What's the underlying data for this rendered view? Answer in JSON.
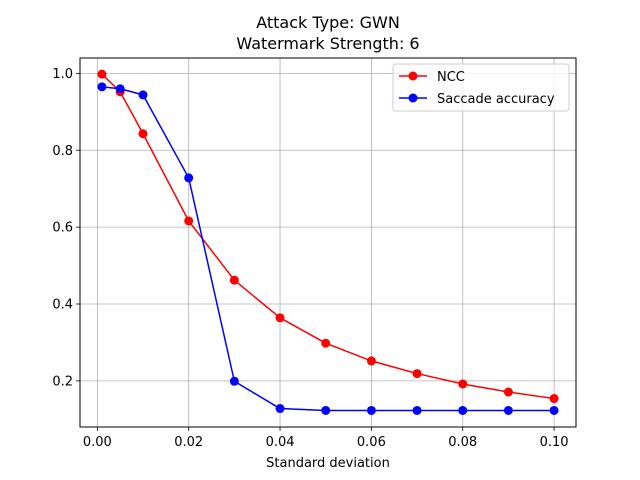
{
  "chart_data": {
    "type": "line",
    "title_line1": "Attack Type: GWN",
    "title_line2": "Watermark Strength: 6",
    "xlabel": "Standard deviation",
    "ylabel": "",
    "xlim": [
      -0.0038,
      0.1048
    ],
    "ylim": [
      0.08,
      1.04
    ],
    "xticks": [
      0.0,
      0.02,
      0.04,
      0.06,
      0.08,
      0.1
    ],
    "xtick_labels": [
      "0.00",
      "0.02",
      "0.04",
      "0.06",
      "0.08",
      "0.10"
    ],
    "yticks": [
      0.2,
      0.4,
      0.6,
      0.8,
      1.0
    ],
    "ytick_labels": [
      "0.2",
      "0.4",
      "0.6",
      "0.8",
      "1.0"
    ],
    "grid": true,
    "legend_position": "top-right",
    "x": [
      0.001,
      0.005,
      0.01,
      0.02,
      0.03,
      0.04,
      0.05,
      0.06,
      0.07,
      0.08,
      0.09,
      0.1
    ],
    "series": [
      {
        "name": "NCC",
        "color": "#ff0000",
        "values": [
          0.998,
          0.952,
          0.843,
          0.616,
          0.462,
          0.364,
          0.298,
          0.252,
          0.219,
          0.192,
          0.171,
          0.154
        ]
      },
      {
        "name": "Saccade accuracy",
        "color": "#0000ff",
        "values": [
          0.965,
          0.96,
          0.944,
          0.728,
          0.199,
          0.128,
          0.123,
          0.123,
          0.123,
          0.123,
          0.123,
          0.123
        ]
      }
    ]
  }
}
